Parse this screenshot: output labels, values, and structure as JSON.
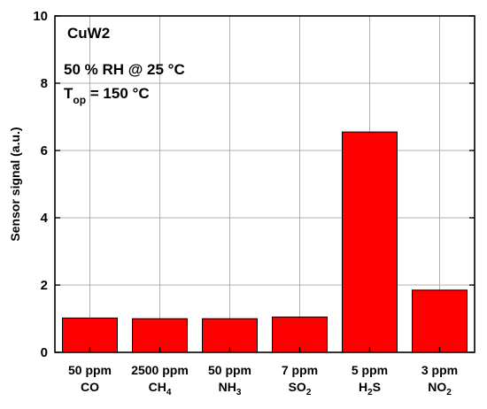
{
  "chart_data": {
    "type": "bar",
    "title": "",
    "xlabel": "",
    "ylabel": "Sensor signal (a.u.)",
    "ylim": [
      0,
      10
    ],
    "yticks": [
      0,
      2,
      4,
      6,
      8,
      10
    ],
    "grid": true,
    "bar_color": "#ff0000",
    "bar_edge_color": "#000000",
    "categories": [
      {
        "conc": "50 ppm",
        "gas": "CO",
        "sub": ""
      },
      {
        "conc": "2500 ppm",
        "gas": "CH",
        "sub": "4"
      },
      {
        "conc": "50 ppm",
        "gas": "NH",
        "sub": "3"
      },
      {
        "conc": "7 ppm",
        "gas": "SO",
        "sub": "2"
      },
      {
        "conc": "5 ppm",
        "gas": "H",
        "sub": "2",
        "gas_after": "S"
      },
      {
        "conc": "3 ppm",
        "gas": "NO",
        "sub": "2"
      }
    ],
    "values": [
      1.02,
      1.0,
      1.0,
      1.05,
      6.55,
      1.85
    ],
    "annotations": {
      "sample": "CuW2",
      "condition": "50 % RH @ 25 °C",
      "top_main": "T",
      "top_sub": "op",
      "top_value": " = 150 °C"
    }
  }
}
